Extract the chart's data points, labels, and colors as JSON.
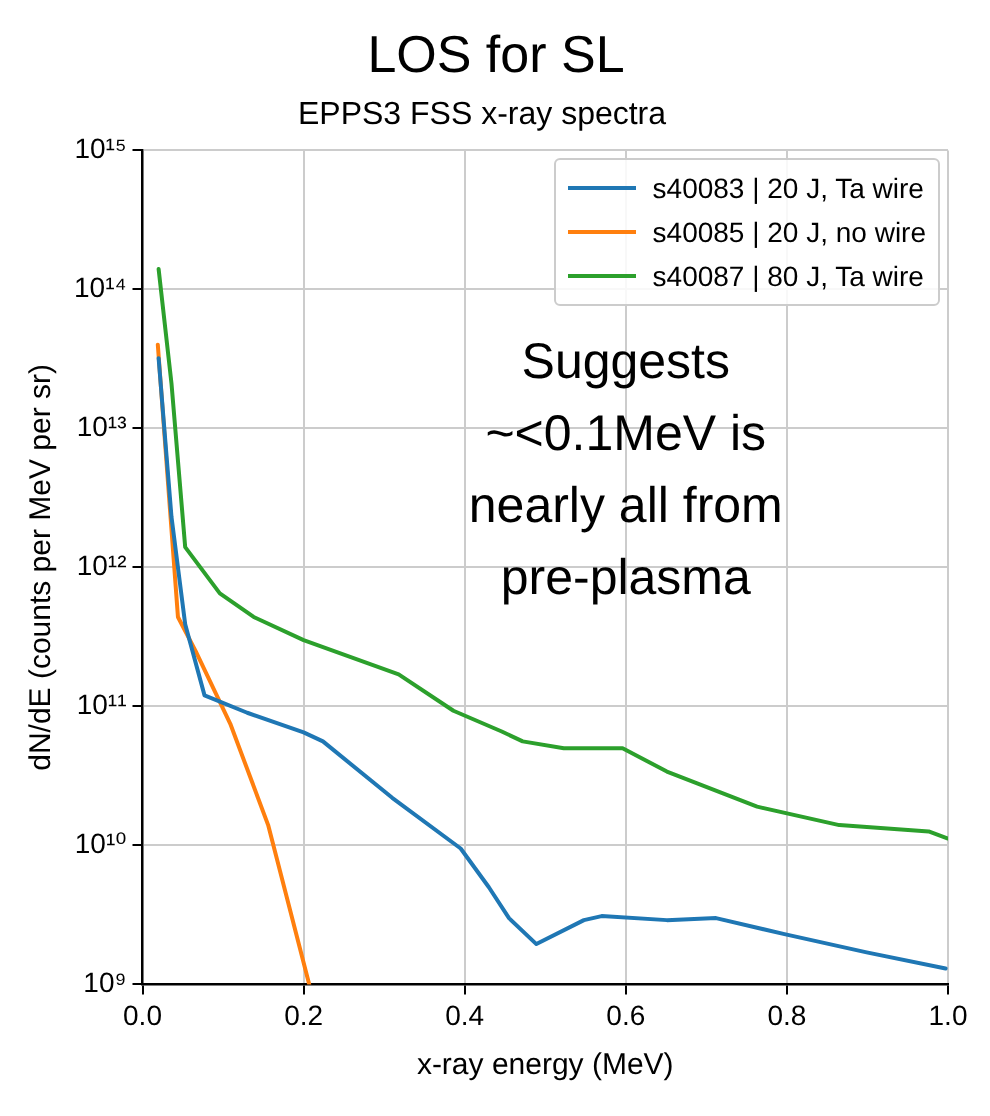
{
  "chart_data": {
    "type": "line",
    "title": "LOS for SL",
    "subtitle": "EPPS3 FSS x-ray spectra",
    "xlabel": "x-ray energy (MeV)",
    "ylabel": "dN/dE (counts per MeV per sr)",
    "xlim": [
      0,
      1
    ],
    "xticks": [
      {
        "value": 0,
        "label": "0.0"
      },
      0.2,
      0.4,
      0.6,
      0.8,
      {
        "value": 1,
        "label": "1.0"
      }
    ],
    "ylim": [
      1000000000.0,
      1000000000000000.0
    ],
    "yticks": [
      {
        "value": 1000000000.0,
        "label": "10⁹"
      },
      {
        "value": 10000000000.0,
        "label": "10¹⁰"
      },
      {
        "value": 100000000000.0,
        "label": "10¹¹"
      },
      {
        "value": 1000000000000.0,
        "label": "10¹²"
      },
      {
        "value": 10000000000000.0,
        "label": "10¹³"
      },
      {
        "value": 100000000000000.0,
        "label": "10¹⁴"
      },
      {
        "value": 1000000000000000.0,
        "label": "10¹⁵"
      }
    ],
    "log": "y",
    "grid": true,
    "legend": "top right",
    "marker": "none",
    "line_style": "solid",
    "annotations": [
      "Suggests\n~<0.1MeV is\nnearly all from\npre-plasma"
    ],
    "series": [
      {
        "name": "s40083 | 20 J, Ta wire",
        "color": "#1f77b4",
        "x": [
          0.02,
          0.036,
          0.053,
          0.077,
          0.13,
          0.2,
          0.224,
          0.31,
          0.395,
          0.43,
          0.455,
          0.489,
          0.548,
          0.57,
          0.651,
          0.712,
          0.797,
          0.899,
          0.997
        ],
        "values": [
          32000000000000.0,
          2300000000000.0,
          390000000000.0,
          120000000000.0,
          90000000000.0,
          65000000000.0,
          56000000000.0,
          22000000000.0,
          9500000000.0,
          5000000000.0,
          3000000000.0,
          1950000000.0,
          2900000000.0,
          3100000000.0,
          2900000000.0,
          3000000000.0,
          2300000000.0,
          1700000000.0,
          1300000000.0
        ]
      },
      {
        "name": "s40085 | 20 J, no wire",
        "color": "#ff7f0e",
        "x": [
          0.019,
          0.044,
          0.066,
          0.109,
          0.156,
          0.207
        ],
        "values": [
          40000000000000.0,
          440000000000.0,
          250000000000.0,
          75000000000.0,
          14000000000.0,
          1000000000.0
        ]
      },
      {
        "name": "s40087 | 80 J, Ta wire",
        "color": "#2ca02c",
        "x": [
          0.02,
          0.036,
          0.053,
          0.096,
          0.138,
          0.2,
          0.318,
          0.386,
          0.446,
          0.472,
          0.523,
          0.596,
          0.651,
          0.763,
          0.865,
          0.976,
          1.0
        ],
        "values": [
          140000000000000.0,
          21000000000000.0,
          1400000000000.0,
          650000000000.0,
          440000000000.0,
          300000000000.0,
          170000000000.0,
          93000000000.0,
          66000000000.0,
          56000000000.0,
          50000000000.0,
          50000000000.0,
          34000000000.0,
          19000000000.0,
          14000000000.0,
          12600000000.0,
          11200000000.0
        ]
      }
    ]
  }
}
